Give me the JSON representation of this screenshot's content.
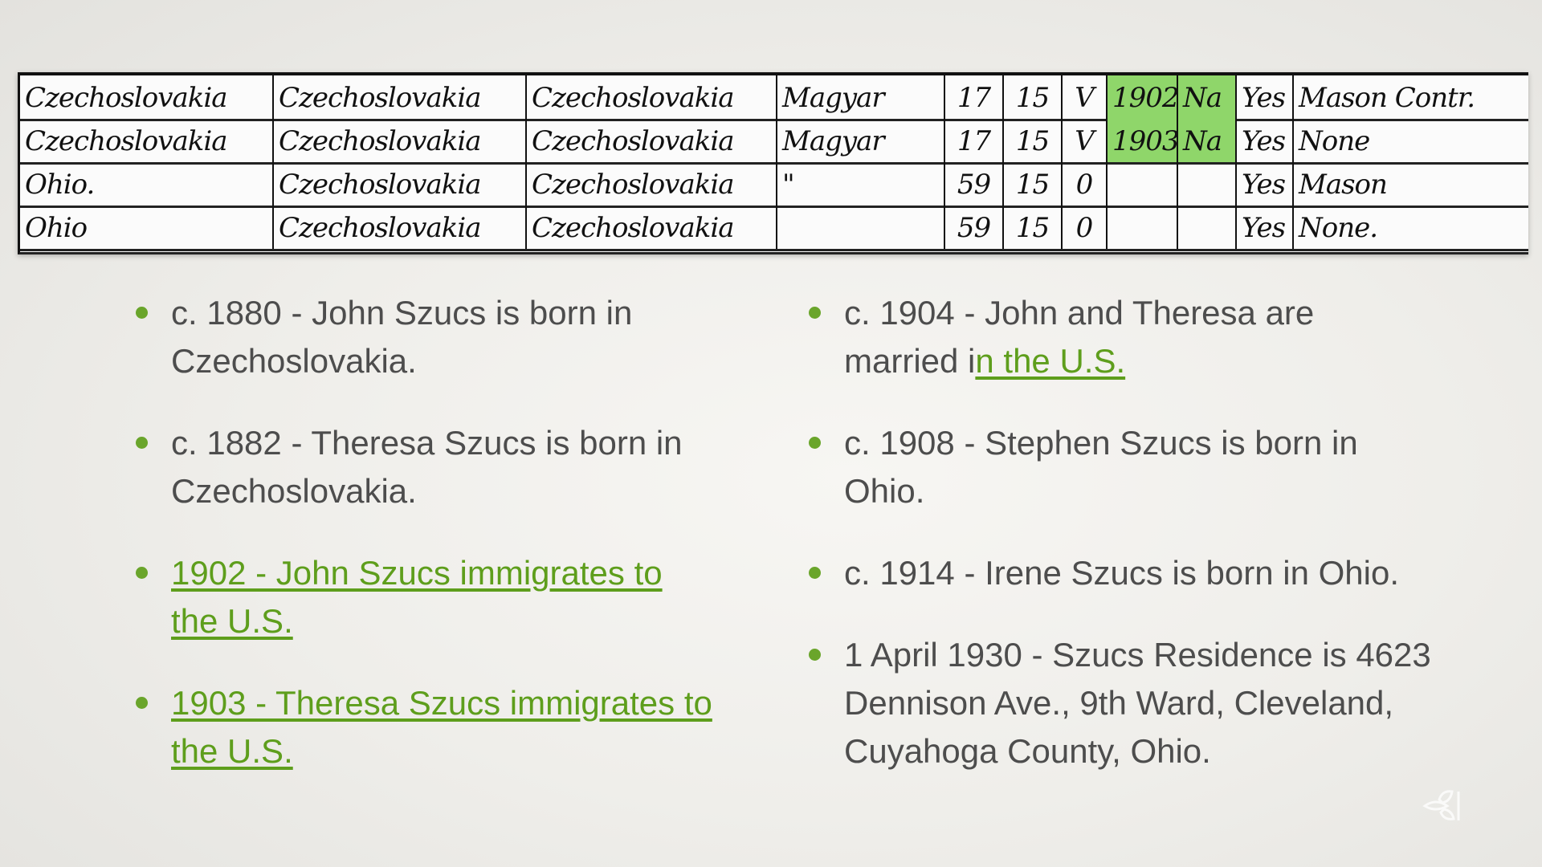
{
  "census": {
    "rows": [
      [
        "Czechoslovakia",
        "Czechoslovakia",
        "Czechoslovakia",
        "Magyar",
        "17",
        "15",
        "V",
        "1902",
        "Na",
        "Yes",
        "Mason Contr."
      ],
      [
        "Czechoslovakia",
        "Czechoslovakia",
        "Czechoslovakia",
        "Magyar",
        "17",
        "15",
        "V",
        "1903",
        "Na",
        "Yes",
        "None"
      ],
      [
        "Ohio.",
        "Czechoslovakia",
        "Czechoslovakia",
        "\"",
        "59",
        "15",
        "0",
        "",
        "",
        "Yes",
        "Mason"
      ],
      [
        "Ohio",
        "Czechoslovakia",
        "Czechoslovakia",
        "",
        "59",
        "15",
        "0",
        "",
        "",
        "Yes",
        "None."
      ]
    ],
    "highlight_color": "#8fd66a"
  },
  "left_items": [
    {
      "text": "c. 1880 - John Szucs is born in Czechoslovakia.",
      "link": ""
    },
    {
      "text": "c. 1882 - Theresa Szucs is born in Czechoslovakia.",
      "link": ""
    },
    {
      "text": "",
      "link": "1902 - John Szucs immigrates to the U.S."
    },
    {
      "text": "",
      "link": "1903 - Theresa Szucs immigrates to the U.S."
    }
  ],
  "right_items": [
    {
      "text": "c. 1904 - John and Theresa are married i",
      "link": "n the U.S."
    },
    {
      "text": "c. 1908 - Stephen Szucs is born in Ohio.",
      "link": ""
    },
    {
      "text": "c. 1914 - Irene Szucs is born in Ohio.",
      "link": ""
    },
    {
      "text": "1 April 1930 - Szucs Residence is 4623 Dennison Ave., 9th Ward, Cleveland, Cuyahoga County, Ohio.",
      "link": ""
    }
  ],
  "colors": {
    "text": "#4d4d4d",
    "link": "#5e9e1c",
    "bullet": "#6aa52b"
  },
  "logo_icon": "leaf-logo-icon"
}
